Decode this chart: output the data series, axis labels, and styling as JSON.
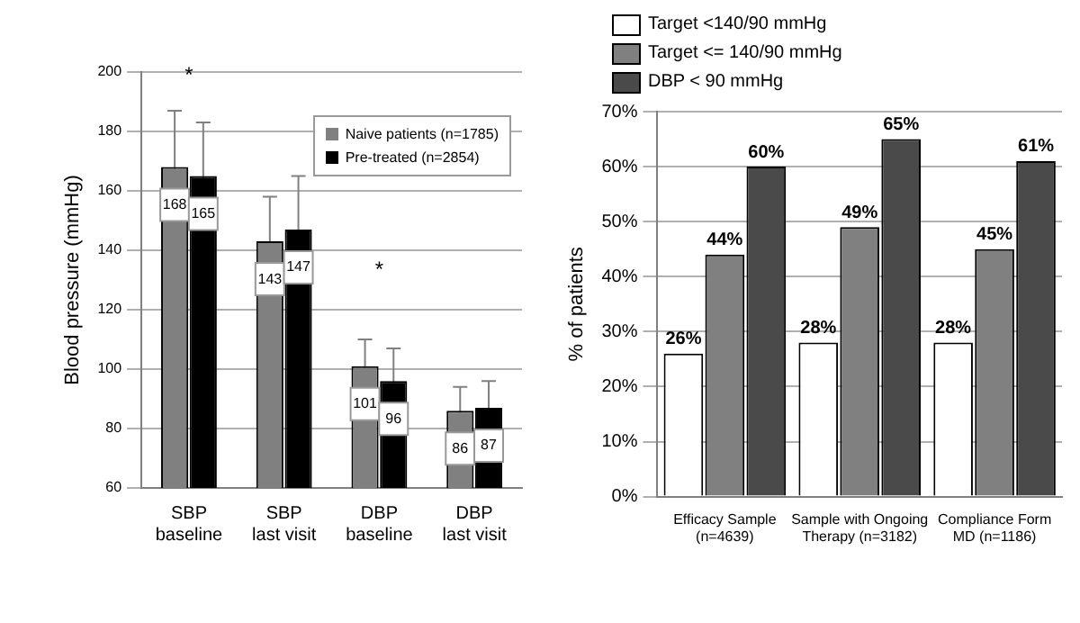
{
  "chart_data": [
    {
      "type": "bar",
      "ylabel": "Blood pressure (mmHg)",
      "categories": [
        "SBP\nbaseline",
        "SBP\nlast visit",
        "DBP\nbaseline",
        "DBP\nlast visit"
      ],
      "series": [
        {
          "name": "Naive patients (n=1785)",
          "color": "#808080",
          "values": [
            168,
            143,
            101,
            86
          ],
          "errors": [
            19,
            15,
            9,
            8
          ]
        },
        {
          "name": "Pre-treated (n=2854)",
          "color": "#000000",
          "values": [
            165,
            147,
            96,
            87
          ],
          "errors": [
            18,
            18,
            11,
            9
          ]
        }
      ],
      "ylim": [
        60,
        200
      ],
      "yticks": [
        60,
        80,
        100,
        120,
        140,
        160,
        180,
        200
      ],
      "grid": "y",
      "legend": "top right",
      "data_labels": true,
      "annotations": [
        "*",
        "*"
      ]
    },
    {
      "type": "bar",
      "ylabel": "% of patients",
      "categories": [
        "Efficacy Sample\n(n=4639)",
        "Sample with Ongoing\nTherapy (n=3182)",
        "Compliance Form\nMD (n=1186)"
      ],
      "series": [
        {
          "name": "Target <140/90 mmHg",
          "color": "#ffffff",
          "values": [
            26,
            28,
            28
          ],
          "value_labels": [
            "26%",
            "28%",
            "28%"
          ]
        },
        {
          "name": "Target <= 140/90 mmHg",
          "color": "#808080",
          "values": [
            44,
            49,
            45
          ],
          "value_labels": [
            "44%",
            "49%",
            "45%"
          ]
        },
        {
          "name": "DBP < 90 mmHg",
          "color": "#4a4a4a",
          "values": [
            60,
            65,
            61
          ],
          "value_labels": [
            "60%",
            "65%",
            "61%"
          ]
        }
      ],
      "ylim": [
        0,
        70
      ],
      "yticks": [
        {
          "value": 0,
          "label": "0%"
        },
        {
          "value": 10,
          "label": "10%"
        },
        {
          "value": 20,
          "label": "20%"
        },
        {
          "value": 30,
          "label": "30%"
        },
        {
          "value": 40,
          "label": "40%"
        },
        {
          "value": 50,
          "label": "50%"
        },
        {
          "value": 60,
          "label": "60%"
        },
        {
          "value": 70,
          "label": "70%"
        }
      ],
      "grid": "y",
      "legend": "top left"
    }
  ]
}
